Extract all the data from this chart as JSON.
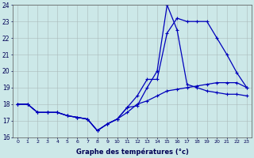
{
  "xlabel": "Graphe des températures (°c)",
  "x_labels": [
    "0",
    "1",
    "2",
    "3",
    "4",
    "5",
    "6",
    "7",
    "8",
    "9",
    "10",
    "11",
    "12",
    "13",
    "14",
    "15",
    "16",
    "17",
    "18",
    "19",
    "20",
    "21",
    "22",
    "23"
  ],
  "ylim": [
    16,
    24
  ],
  "xlim": [
    -0.5,
    23.5
  ],
  "yticks": [
    16,
    17,
    18,
    19,
    20,
    21,
    22,
    23,
    24
  ],
  "background_color": "#cce8e8",
  "grid_color": "#aababa",
  "line_color": "#0000bb",
  "series1": [
    18.0,
    18.0,
    17.5,
    17.5,
    17.5,
    17.3,
    17.2,
    17.1,
    16.4,
    16.8,
    17.1,
    17.5,
    18.0,
    18.2,
    18.5,
    18.8,
    18.9,
    19.0,
    19.1,
    19.2,
    19.3,
    19.3,
    19.3,
    19.0
  ],
  "series2": [
    18.0,
    18.0,
    17.5,
    17.5,
    17.5,
    17.3,
    17.2,
    17.1,
    16.4,
    16.8,
    17.1,
    17.8,
    17.9,
    19.0,
    20.0,
    24.0,
    22.5,
    19.2,
    19.0,
    18.8,
    18.7,
    18.6,
    18.6,
    18.5
  ],
  "series3": [
    18.0,
    18.0,
    17.5,
    17.5,
    17.5,
    17.3,
    17.2,
    17.1,
    16.4,
    16.8,
    17.1,
    17.8,
    18.5,
    19.5,
    19.5,
    22.3,
    23.2,
    23.0,
    23.0,
    23.0,
    22.0,
    21.0,
    19.9,
    19.0
  ]
}
